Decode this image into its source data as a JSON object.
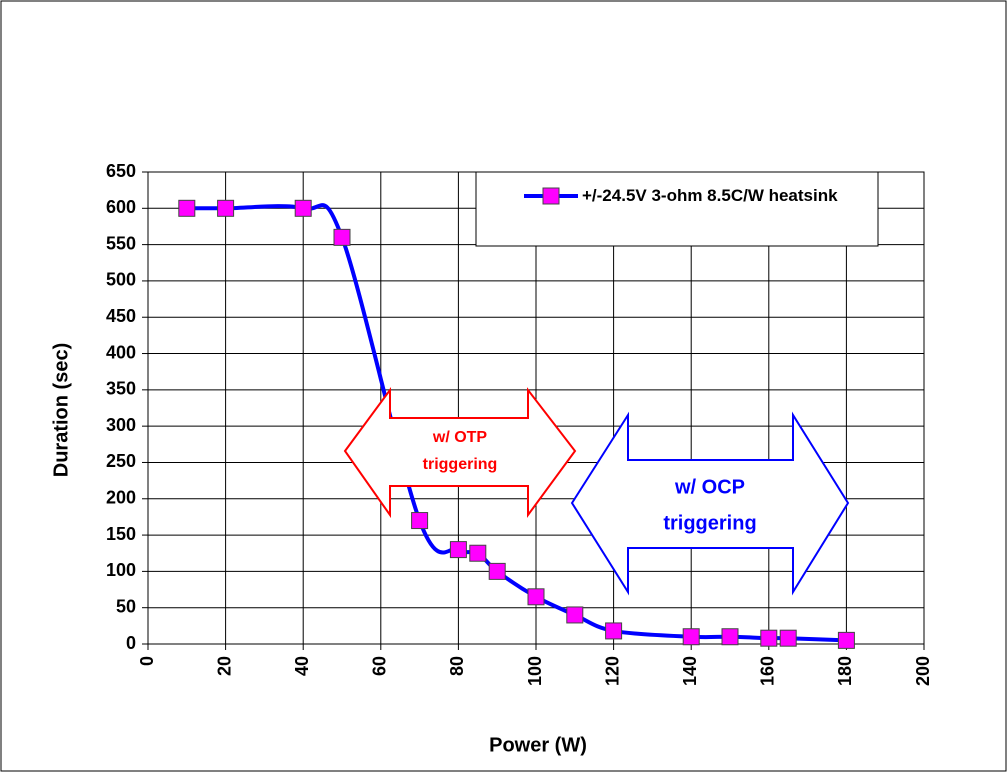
{
  "chart_data": {
    "type": "line",
    "x_label": "Power (W)",
    "y_label": "Duration (sec)",
    "x": [
      10,
      20,
      40,
      50,
      70,
      80,
      85,
      90,
      100,
      110,
      120,
      140,
      150,
      160,
      165,
      180
    ],
    "series": [
      {
        "name": "+/-24.5V 3-ohm 8.5C/W heatsink",
        "color": "#0000ff",
        "marker_color": "#ff00ff",
        "values": [
          600,
          600,
          600,
          560,
          170,
          130,
          125,
          100,
          65,
          40,
          18,
          10,
          10,
          8,
          8,
          5
        ]
      }
    ],
    "xlim": [
      0,
      200
    ],
    "xticks": [
      0,
      20,
      40,
      60,
      80,
      100,
      120,
      140,
      160,
      180,
      200
    ],
    "ylim": [
      0,
      650
    ],
    "yticks": [
      0,
      50,
      100,
      150,
      200,
      250,
      300,
      350,
      400,
      450,
      500,
      550,
      600,
      650
    ],
    "grid": true,
    "legend": "top-right",
    "annotations": [
      {
        "lines": [
          "w/ OTP",
          "triggering"
        ],
        "color": "#ff0000"
      },
      {
        "lines": [
          "w/ OCP",
          "triggering"
        ],
        "color": "#0000ff"
      }
    ]
  }
}
